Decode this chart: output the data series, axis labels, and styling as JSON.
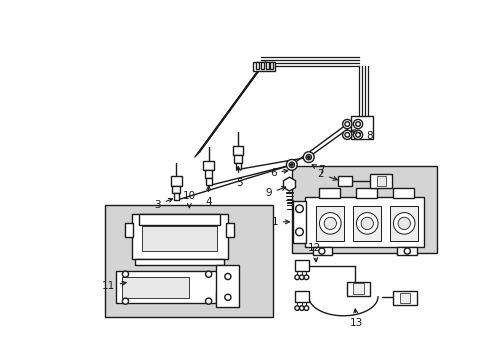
{
  "bg_color": "#ffffff",
  "box_fill": "#d4d4d4",
  "line_color": "#1a1a1a",
  "label_color": "#111111",
  "figsize": [
    4.89,
    3.6
  ],
  "dpi": 100
}
